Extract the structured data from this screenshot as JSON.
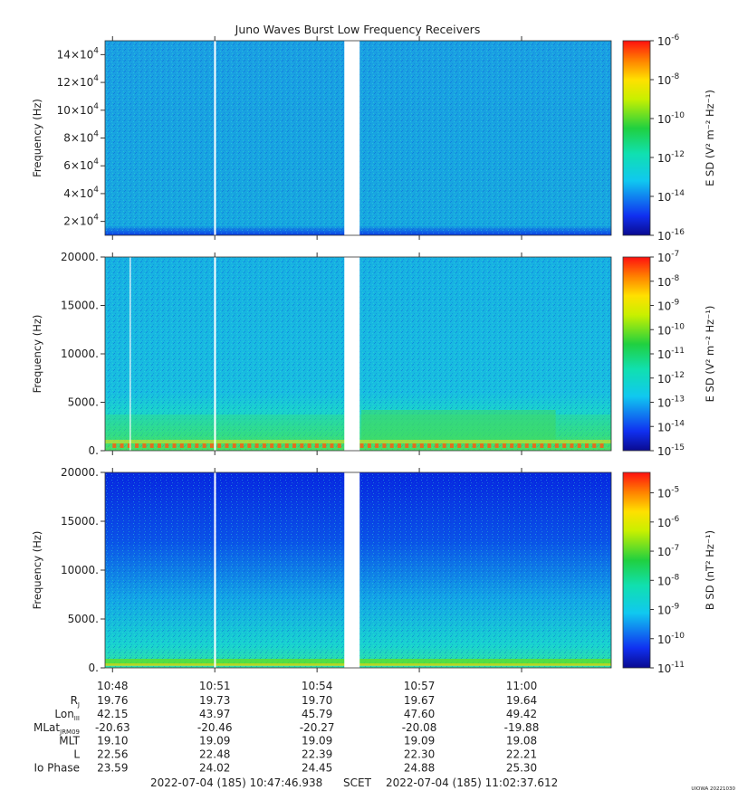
{
  "title": "Juno Waves Burst Low Frequency Receivers",
  "footer": {
    "start": "2022-07-04 (185) 10:47:46.938",
    "scet": "SCET",
    "end": "2022-07-04 (185) 11:02:37.612",
    "stamp": "UIOWA 20221030"
  },
  "colors": {
    "bg_top": "#1aa6e0",
    "bg_mid": "#18b5e0",
    "bg_bot_dark": "#0a2ee0",
    "bg_bot_light": "#15c8d8",
    "band_green": "#2ad060",
    "band_red": "#ff3000"
  },
  "chart_data": [
    {
      "type": "heatmap",
      "ylabel": "Frequency (Hz)",
      "ylim": [
        10000,
        150000
      ],
      "yticks": [
        {
          "value": 20000,
          "label": "2×10",
          "exp": "4"
        },
        {
          "value": 40000,
          "label": "4×10",
          "exp": "4"
        },
        {
          "value": 60000,
          "label": "6×10",
          "exp": "4"
        },
        {
          "value": 80000,
          "label": "8×10",
          "exp": "4"
        },
        {
          "value": 100000,
          "label": "10×10",
          "exp": "4"
        },
        {
          "value": 120000,
          "label": "12×10",
          "exp": "4"
        },
        {
          "value": 140000,
          "label": "14×10",
          "exp": "4"
        }
      ],
      "colorbar": {
        "label": "E SD (V² m⁻² Hz⁻¹)",
        "range_exp": [
          -16,
          -6
        ],
        "ticks": [
          {
            "base": "10",
            "exp": "-6",
            "value": -6
          },
          {
            "base": "10",
            "exp": "-8",
            "value": -8
          },
          {
            "base": "10",
            "exp": "-10",
            "value": -10
          },
          {
            "base": "10",
            "exp": "-12",
            "value": -12
          },
          {
            "base": "10",
            "exp": "-14",
            "value": -14
          },
          {
            "base": "10",
            "exp": "-16",
            "value": -16
          }
        ]
      }
    },
    {
      "type": "heatmap",
      "ylabel": "Frequency (Hz)",
      "ylim": [
        0,
        20000
      ],
      "yticks": [
        {
          "value": 0,
          "label": "0."
        },
        {
          "value": 5000,
          "label": "5000."
        },
        {
          "value": 10000,
          "label": "10000."
        },
        {
          "value": 15000,
          "label": "15000."
        },
        {
          "value": 20000,
          "label": "20000."
        }
      ],
      "colorbar": {
        "label": "E SD (V² m⁻² Hz⁻¹)",
        "range_exp": [
          -15,
          -7
        ],
        "ticks": [
          {
            "base": "10",
            "exp": "-7",
            "value": -7
          },
          {
            "base": "10",
            "exp": "-8",
            "value": -8
          },
          {
            "base": "10",
            "exp": "-9",
            "value": -9
          },
          {
            "base": "10",
            "exp": "-10",
            "value": -10
          },
          {
            "base": "10",
            "exp": "-11",
            "value": -11
          },
          {
            "base": "10",
            "exp": "-12",
            "value": -12
          },
          {
            "base": "10",
            "exp": "-13",
            "value": -13
          },
          {
            "base": "10",
            "exp": "-14",
            "value": -14
          },
          {
            "base": "10",
            "exp": "-15",
            "value": -15
          }
        ]
      }
    },
    {
      "type": "heatmap",
      "ylabel": "Frequency (Hz)",
      "ylim": [
        0,
        20000
      ],
      "yticks": [
        {
          "value": 0,
          "label": "0."
        },
        {
          "value": 5000,
          "label": "5000."
        },
        {
          "value": 10000,
          "label": "10000."
        },
        {
          "value": 15000,
          "label": "15000."
        },
        {
          "value": 20000,
          "label": "20000."
        }
      ],
      "colorbar": {
        "label": "B SD (nT² Hz⁻¹)",
        "range_exp": [
          -11,
          -4.3
        ],
        "ticks": [
          {
            "base": "10",
            "exp": "-5",
            "value": -5
          },
          {
            "base": "10",
            "exp": "-6",
            "value": -6
          },
          {
            "base": "10",
            "exp": "-7",
            "value": -7
          },
          {
            "base": "10",
            "exp": "-8",
            "value": -8
          },
          {
            "base": "10",
            "exp": "-9",
            "value": -9
          },
          {
            "base": "10",
            "exp": "-10",
            "value": -10
          },
          {
            "base": "10",
            "exp": "-11",
            "value": -11
          }
        ]
      }
    }
  ],
  "time_axis": {
    "start_min": 47.78,
    "end_min": 62.63,
    "labels": [
      {
        "minute": 48,
        "text": "10:48"
      },
      {
        "minute": 51,
        "text": "10:51"
      },
      {
        "minute": 54,
        "text": "10:54"
      },
      {
        "minute": 57,
        "text": "10:57"
      },
      {
        "minute": 60,
        "text": "11:00"
      }
    ],
    "gap_min": [
      54.8,
      55.25
    ],
    "gap_color": "#ffffff"
  },
  "ephemeris": {
    "rows": [
      {
        "label": "R",
        "sub": "J",
        "values": [
          "19.76",
          "19.73",
          "19.70",
          "19.67",
          "19.64"
        ]
      },
      {
        "label": "Lon",
        "sub": "III",
        "values": [
          "42.15",
          "43.97",
          "45.79",
          "47.60",
          "49.42"
        ]
      },
      {
        "label": "MLat",
        "sub": "JRM09",
        "values": [
          "-20.63",
          "-20.46",
          "-20.27",
          "-20.08",
          "-19.88"
        ]
      },
      {
        "label": "MLT",
        "sub": "",
        "values": [
          "19.10",
          "19.09",
          "19.09",
          "19.09",
          "19.08"
        ]
      },
      {
        "label": "L",
        "sub": "",
        "values": [
          "22.56",
          "22.48",
          "22.39",
          "22.30",
          "22.21"
        ]
      },
      {
        "label": "Io Phase",
        "sub": "",
        "values": [
          "23.59",
          "24.02",
          "24.45",
          "24.88",
          "25.30"
        ]
      }
    ]
  }
}
